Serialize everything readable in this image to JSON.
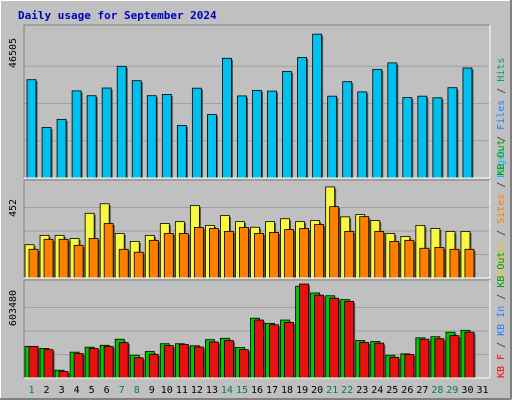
{
  "chart_data": {
    "type": "bar",
    "title": "Daily usage for September 2024",
    "categories": [
      "1",
      "2",
      "3",
      "4",
      "5",
      "6",
      "7",
      "8",
      "9",
      "10",
      "11",
      "12",
      "13",
      "14",
      "15",
      "16",
      "17",
      "18",
      "19",
      "20",
      "21",
      "22",
      "23",
      "24",
      "25",
      "26",
      "27",
      "28",
      "29",
      "30",
      "31"
    ],
    "weekend_days": [
      "1",
      "7",
      "8",
      "14",
      "15",
      "21",
      "22",
      "28",
      "29"
    ],
    "panels": [
      {
        "max_label": "46505",
        "ylim": [
          0,
          46505
        ],
        "legend": [
          {
            "text": "Pages",
            "color": "#00c0ff"
          },
          {
            "text": " / ",
            "color": "#333333"
          },
          {
            "text": "Files",
            "color": "#2080ff"
          },
          {
            "text": " / ",
            "color": "#333333"
          },
          {
            "text": "Hits",
            "color": "#00a080"
          }
        ],
        "series": [
          {
            "color": "#00c0f0",
            "values": [
              30680,
              15760,
              18300,
              27190,
              25680,
              28090,
              34860,
              30370,
              25690,
              26090,
              16420,
              28030,
              19800,
              37360,
              25620,
              27340,
              27120,
              33240,
              37640,
              44900,
              25540,
              30070,
              26880,
              33910,
              35920,
              25110,
              25540,
              25040,
              28180,
              34340,
              null
            ]
          }
        ]
      },
      {
        "max_label": "452",
        "ylim": [
          0,
          452
        ],
        "legend": [
          {
            "text": "Visits",
            "color": "#e0d000"
          },
          {
            "text": " / ",
            "color": "#333333"
          },
          {
            "text": "Sites",
            "color": "#ff8000"
          },
          {
            "text": " / ",
            "color": "#333333"
          },
          {
            "text": "KB Out",
            "color": "#00a000"
          }
        ],
        "series": [
          {
            "color": "#f8f840",
            "values": [
              160,
              205,
              205,
              190,
              311,
              357,
              214,
              176,
              205,
              262,
              271,
              348,
              253,
              300,
              271,
              244,
              271,
              285,
              271,
              276,
              438,
              294,
              305,
              276,
              214,
              200,
              253,
              238,
              224,
              224,
              null
            ]
          },
          {
            "color": "#ff8000",
            "values": [
              138,
              186,
              186,
              157,
              190,
              262,
              138,
              124,
              181,
              214,
              214,
              243,
              238,
              224,
              243,
              214,
              219,
              233,
              238,
              257,
              343,
              224,
              295,
              224,
              176,
              181,
              143,
              147,
              138,
              138,
              null
            ]
          }
        ]
      },
      {
        "max_label": "603480",
        "ylim": [
          0,
          603480
        ],
        "legend": [
          {
            "text": "KB F",
            "color": "#ff0000"
          },
          {
            "text": " / ",
            "color": "#333333"
          },
          {
            "text": "KB In",
            "color": "#2080ff"
          },
          {
            "text": " / ",
            "color": "#333333"
          },
          {
            "text": "KB Out",
            "color": "#00a000"
          }
        ],
        "series": [
          {
            "color": "#00c800",
            "values": [
              203000,
              190000,
              50000,
              166000,
              198000,
              210000,
              249000,
              146000,
              170000,
              220000,
              220000,
              207000,
              246000,
              255000,
              196000,
              384000,
              351000,
              372000,
              589000,
              546000,
              528000,
              503000,
              241000,
              234000,
              146000,
              155000,
              258000,
              265000,
              294000,
              306000,
              null
            ]
          },
          {
            "color": "#e81010",
            "values": [
              203000,
              182000,
              42000,
              157000,
              190000,
              202000,
              227000,
              129000,
              152000,
              208000,
              216000,
              199000,
              231000,
              240000,
              182000,
              372000,
              342000,
              357000,
              603480,
              532000,
              512000,
              492000,
              228000,
              224000,
              133000,
              151000,
              249000,
              252000,
              272000,
              294000,
              null
            ]
          }
        ]
      }
    ]
  }
}
